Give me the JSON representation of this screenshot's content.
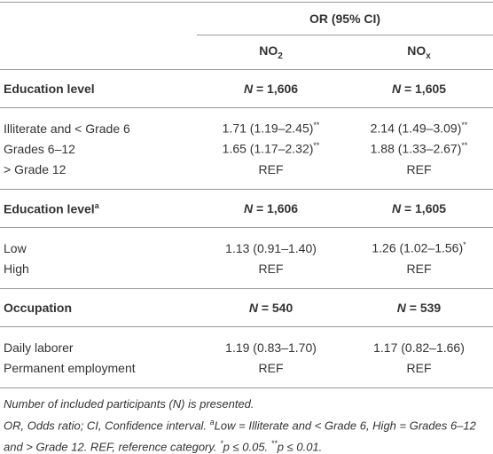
{
  "table": {
    "header": {
      "group": "OR (95% CI)",
      "columns": [
        {
          "main": "NO",
          "sub": "2"
        },
        {
          "main": "NO",
          "sub": "x"
        }
      ]
    },
    "sections": [
      {
        "label": "Education level",
        "n": [
          {
            "symbol": "N",
            "value": "= 1,606"
          },
          {
            "symbol": "N",
            "value": "= 1,605"
          }
        ],
        "rows": [
          {
            "label": "Illiterate and < Grade 6",
            "values": [
              {
                "text": "1.71 (1.19–2.45)",
                "sup": "**"
              },
              {
                "text": "2.14 (1.49–3.09)",
                "sup": "**"
              }
            ]
          },
          {
            "label": "Grades 6–12",
            "values": [
              {
                "text": "1.65 (1.17–2.32)",
                "sup": "**"
              },
              {
                "text": "1.88 (1.33–2.67)",
                "sup": "**"
              }
            ]
          },
          {
            "label": "> Grade 12",
            "values": [
              {
                "text": "REF"
              },
              {
                "text": "REF"
              }
            ]
          }
        ]
      },
      {
        "label": "Education level",
        "sup": "a",
        "n": [
          {
            "symbol": "N",
            "value": "= 1,606"
          },
          {
            "symbol": "N",
            "value": "= 1,605"
          }
        ],
        "rows": [
          {
            "label": "Low",
            "values": [
              {
                "text": "1.13 (0.91–1.40)"
              },
              {
                "text": "1.26 (1.02–1.56)",
                "sup": "*"
              }
            ]
          },
          {
            "label": "High",
            "values": [
              {
                "text": "REF"
              },
              {
                "text": "REF"
              }
            ]
          }
        ]
      },
      {
        "label": "Occupation",
        "n": [
          {
            "symbol": "N",
            "value": "= 540"
          },
          {
            "symbol": "N",
            "value": "= 539"
          }
        ],
        "rows": [
          {
            "label": "Daily laborer",
            "values": [
              {
                "text": "1.19 (0.83–1.70)"
              },
              {
                "text": "1.17 (0.82–1.66)"
              }
            ]
          },
          {
            "label": "Permanent employment",
            "values": [
              {
                "text": "REF"
              },
              {
                "text": "REF"
              }
            ]
          }
        ]
      }
    ],
    "notes": [
      [
        {
          "text": "Number of included participants (N) is presented."
        }
      ],
      [
        {
          "text": "OR, Odds ratio; CI, Confidence interval. "
        },
        {
          "sup": "a"
        },
        {
          "text": "Low = Illiterate and < Grade 6, High = Grades 6–12 and > Grade 12. REF, reference category. "
        },
        {
          "sup": "*"
        },
        {
          "text": "p ≤ 0.05. "
        },
        {
          "sup": "**"
        },
        {
          "text": "p ≤ 0.01."
        }
      ]
    ]
  }
}
